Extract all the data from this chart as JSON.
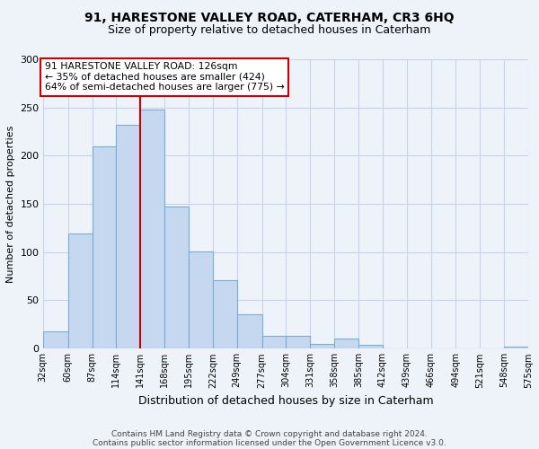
{
  "title1": "91, HARESTONE VALLEY ROAD, CATERHAM, CR3 6HQ",
  "title2": "Size of property relative to detached houses in Caterham",
  "xlabel": "Distribution of detached houses by size in Caterham",
  "ylabel": "Number of detached properties",
  "bar_values": [
    18,
    119,
    210,
    232,
    248,
    147,
    101,
    71,
    35,
    13,
    13,
    5,
    10,
    4,
    0,
    0,
    0,
    0,
    0,
    2
  ],
  "tick_labels": [
    "32sqm",
    "60sqm",
    "87sqm",
    "114sqm",
    "141sqm",
    "168sqm",
    "195sqm",
    "222sqm",
    "249sqm",
    "277sqm",
    "304sqm",
    "331sqm",
    "358sqm",
    "385sqm",
    "412sqm",
    "439sqm",
    "466sqm",
    "494sqm",
    "521sqm",
    "548sqm",
    "575sqm"
  ],
  "bar_color": "#c5d8f0",
  "bar_edge_color": "#7aadd4",
  "grid_color": "#c8d4e8",
  "background_color": "#eef2f9",
  "vline_x_bar_index": 3,
  "vline_color": "#cc0000",
  "annotation_text": "91 HARESTONE VALLEY ROAD: 126sqm\n← 35% of detached houses are smaller (424)\n64% of semi-detached houses are larger (775) →",
  "annotation_box_color": "white",
  "annotation_box_edge": "#cc0000",
  "footer1": "Contains HM Land Registry data © Crown copyright and database right 2024.",
  "footer2": "Contains public sector information licensed under the Open Government Licence v3.0.",
  "ylim": [
    0,
    300
  ],
  "bin_edges": [
    32,
    60,
    87,
    114,
    141,
    168,
    195,
    222,
    249,
    277,
    304,
    331,
    358,
    385,
    412,
    439,
    466,
    494,
    521,
    548,
    575
  ]
}
